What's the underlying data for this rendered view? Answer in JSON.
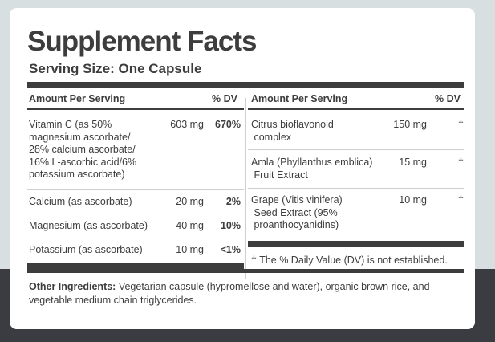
{
  "title": "Supplement Facts",
  "serving_size": "Serving Size: One Capsule",
  "left_table": {
    "header_amount": "Amount Per Serving",
    "header_dv": "% DV",
    "rows": [
      {
        "name": "Vitamin C (as 50%\nmagnesium ascorbate/\n28% calcium ascorbate/\n16% L-ascorbic acid/6%\npotassium ascorbate)",
        "amount": "603 mg",
        "dv": "670%"
      },
      {
        "name": "Calcium (as ascorbate)",
        "amount": "20 mg",
        "dv": "2%"
      },
      {
        "name": "Magnesium (as ascorbate)",
        "amount": "40 mg",
        "dv": "10%"
      },
      {
        "name": "Potassium (as ascorbate)",
        "amount": "10 mg",
        "dv": "<1%"
      }
    ]
  },
  "right_table": {
    "header_amount": "Amount Per Serving",
    "header_dv": "% DV",
    "rows": [
      {
        "name": "Citrus bioflavonoid\n complex",
        "amount": "150 mg",
        "dv": "†"
      },
      {
        "name": "Amla (Phyllanthus emblica)\n Fruit Extract",
        "amount": "15 mg",
        "dv": "†"
      },
      {
        "name": "Grape (Vitis vinifera)\n Seed Extract (95%\n proanthocyanidins)",
        "amount": "10 mg",
        "dv": "†"
      }
    ],
    "footnote": "† The % Daily Value (DV) is not established."
  },
  "other_ingredients": {
    "label": "Other Ingredients:",
    "text": " Vegetarian capsule (hypromellose and water), organic brown rice, and vegetable medium chain triglycerides."
  }
}
